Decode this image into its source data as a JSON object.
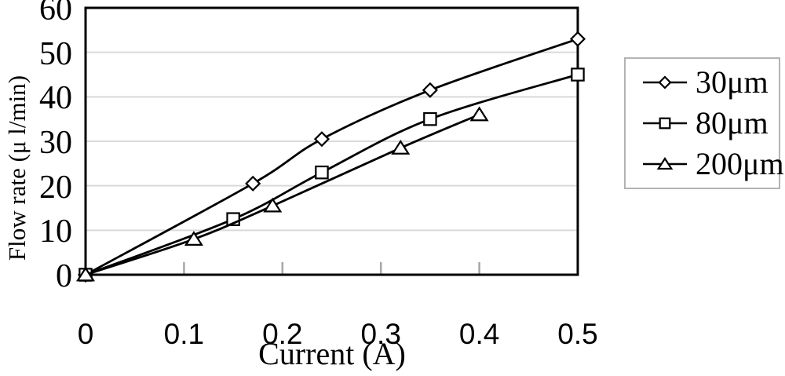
{
  "figure": {
    "background": "#ffffff"
  },
  "chart_data": {
    "type": "line",
    "title": "",
    "xlabel": "Current (A)",
    "ylabel": "Flow rate (μ l/min)",
    "xlim": [
      0,
      0.5
    ],
    "ylim": [
      0,
      60
    ],
    "x_tick_values": [
      0,
      0.1,
      0.2,
      0.3,
      0.4,
      0.5
    ],
    "x_tick_labels": [
      "0",
      "0.1",
      "0.2",
      "0.3",
      "0.4",
      "0.5"
    ],
    "y_tick_values": [
      0,
      10,
      20,
      30,
      40,
      50,
      60
    ],
    "y_tick_labels": [
      "0",
      "10",
      "20",
      "30",
      "40",
      "50",
      "60"
    ],
    "grid": "horizontal",
    "legend_position": "right-outside",
    "colors": {
      "line": "#000000",
      "marker_fill": "#ffffff",
      "grid": "#d9d9d9",
      "tick": "#a6a6a6",
      "plot_border": "#000000",
      "legend_border": "#b3b3b3"
    },
    "series": [
      {
        "name": "30μm",
        "marker": "diamond",
        "x": [
          0,
          0.17,
          0.24,
          0.35,
          0.5
        ],
        "y": [
          0,
          20.5,
          30.5,
          41.5,
          53
        ]
      },
      {
        "name": "80μm",
        "marker": "square",
        "x": [
          0,
          0.15,
          0.24,
          0.35,
          0.5
        ],
        "y": [
          0,
          12.5,
          23,
          35,
          45
        ]
      },
      {
        "name": "200μm",
        "marker": "triangle",
        "x": [
          0,
          0.11,
          0.19,
          0.32,
          0.4
        ],
        "y": [
          0,
          8,
          15.5,
          28.5,
          36
        ]
      }
    ]
  }
}
